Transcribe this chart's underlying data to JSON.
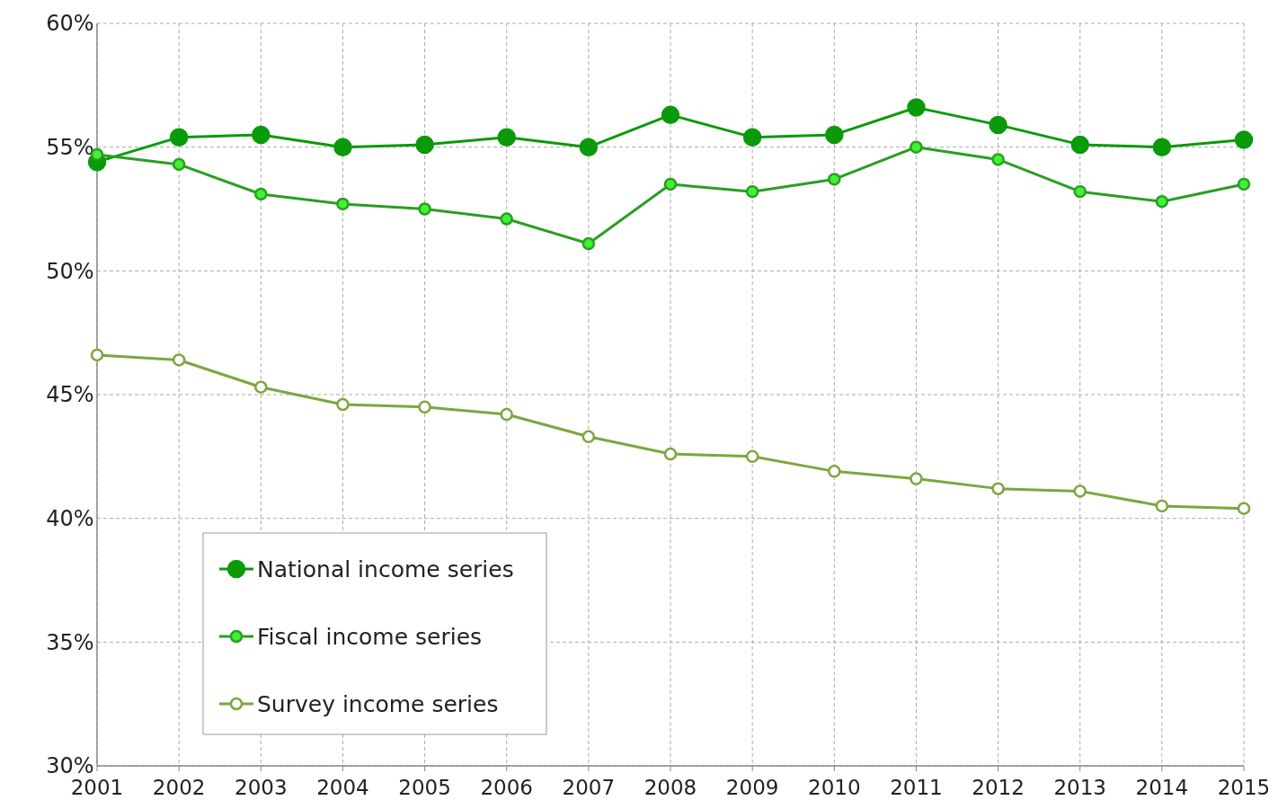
{
  "chart_data": {
    "type": "line",
    "categories": [
      "2001",
      "2002",
      "2003",
      "2004",
      "2005",
      "2006",
      "2007",
      "2008",
      "2009",
      "2010",
      "2011",
      "2012",
      "2013",
      "2014",
      "2015"
    ],
    "series": [
      {
        "name": "National income series",
        "color": "#0a9a0a",
        "values": [
          54.4,
          55.4,
          55.5,
          55.0,
          55.1,
          55.4,
          55.0,
          56.3,
          55.4,
          55.5,
          56.6,
          55.9,
          55.1,
          55.0,
          55.3
        ]
      },
      {
        "name": "Fiscal income series",
        "color": "#2a9e22",
        "values": [
          54.7,
          54.3,
          53.1,
          52.7,
          52.5,
          52.1,
          51.1,
          53.5,
          53.2,
          53.7,
          55.0,
          54.5,
          53.2,
          52.8,
          53.5
        ]
      },
      {
        "name": "Survey income series",
        "color": "#7ba73e",
        "values": [
          46.6,
          46.4,
          45.3,
          44.6,
          44.5,
          44.2,
          43.3,
          42.6,
          42.5,
          41.9,
          41.6,
          41.2,
          41.1,
          40.5,
          40.4
        ]
      }
    ],
    "ylim": [
      30,
      60
    ],
    "yticks": [
      {
        "value": 30,
        "label": "30%"
      },
      {
        "value": 35,
        "label": "35%"
      },
      {
        "value": 40,
        "label": "40%"
      },
      {
        "value": 45,
        "label": "45%"
      },
      {
        "value": 50,
        "label": "50%"
      },
      {
        "value": 55,
        "label": "55%"
      },
      {
        "value": 60,
        "label": "60%"
      }
    ],
    "grid": true,
    "legend": "bottom left",
    "marker": "circle",
    "line_style": "solid"
  }
}
